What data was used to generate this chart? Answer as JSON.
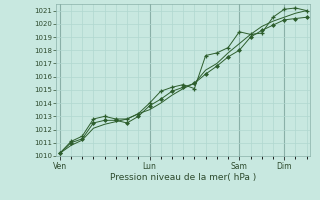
{
  "xlabel": "Pression niveau de la mer( hPa )",
  "ylim": [
    1010,
    1021.5
  ],
  "yticks": [
    1010,
    1011,
    1012,
    1013,
    1014,
    1015,
    1016,
    1017,
    1018,
    1019,
    1020,
    1021
  ],
  "background_color": "#c8e8e0",
  "grid_color": "#b0d8d0",
  "line_color": "#2d5e2d",
  "day_labels": [
    "Ven",
    "Lun",
    "Sam",
    "Dim"
  ],
  "day_positions": [
    0,
    48,
    96,
    120
  ],
  "xlim": [
    -2,
    134
  ],
  "series1_x": [
    0,
    6,
    12,
    18,
    24,
    30,
    36,
    42,
    48,
    54,
    60,
    66,
    72,
    78,
    84,
    90,
    96,
    102,
    108,
    114,
    120,
    126,
    132
  ],
  "series1_y": [
    1010.2,
    1011.1,
    1011.5,
    1012.8,
    1013.0,
    1012.8,
    1012.8,
    1013.2,
    1014.0,
    1014.9,
    1015.2,
    1015.4,
    1015.1,
    1017.6,
    1017.8,
    1018.2,
    1019.4,
    1019.2,
    1019.3,
    1020.5,
    1021.1,
    1021.2,
    1021.0
  ],
  "series2_x": [
    0,
    6,
    12,
    18,
    24,
    30,
    36,
    42,
    48,
    54,
    60,
    66,
    72,
    78,
    84,
    90,
    96,
    102,
    108,
    114,
    120,
    126,
    132
  ],
  "series2_y": [
    1010.2,
    1011.0,
    1011.3,
    1012.5,
    1012.7,
    1012.7,
    1012.5,
    1013.0,
    1013.8,
    1014.3,
    1014.9,
    1015.2,
    1015.5,
    1016.2,
    1016.8,
    1017.5,
    1018.0,
    1019.0,
    1019.5,
    1019.9,
    1020.3,
    1020.4,
    1020.5
  ],
  "series3_x": [
    0,
    6,
    12,
    18,
    24,
    30,
    36,
    42,
    48,
    54,
    60,
    66,
    72,
    78,
    84,
    90,
    96,
    102,
    108,
    114,
    120,
    126,
    132
  ],
  "series3_y": [
    1010.2,
    1010.8,
    1011.2,
    1012.1,
    1012.4,
    1012.6,
    1012.8,
    1013.2,
    1013.5,
    1014.0,
    1014.6,
    1015.1,
    1015.5,
    1016.5,
    1017.0,
    1017.8,
    1018.5,
    1019.2,
    1019.8,
    1020.2,
    1020.5,
    1020.8,
    1021.0
  ]
}
